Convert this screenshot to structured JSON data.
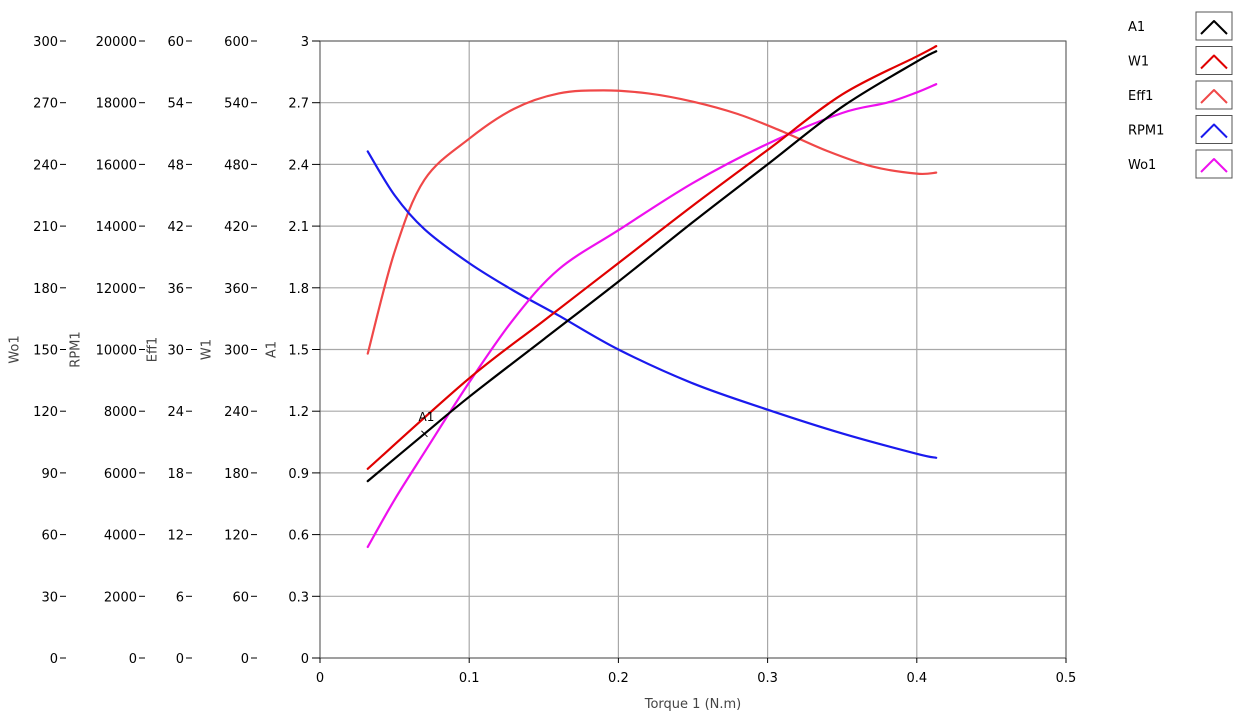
{
  "chart_data": {
    "type": "line",
    "xlabel": "Torque 1 (N.m)",
    "xlim": [
      0,
      0.5
    ],
    "x_ticks": [
      "0",
      "0.1",
      "0.2",
      "0.3",
      "0.4",
      "0.5"
    ],
    "grid": true,
    "legend_position": "top-right",
    "y_axes": [
      {
        "id": "Wo1",
        "label": "Wo1",
        "ylim": [
          0,
          300
        ],
        "ticks": [
          "300",
          "270",
          "240",
          "210",
          "180",
          "150",
          "120",
          "90",
          "60",
          "30",
          "0"
        ]
      },
      {
        "id": "RPM1",
        "label": "RPM1",
        "ylim": [
          0,
          20000
        ],
        "ticks": [
          "20000",
          "18000",
          "16000",
          "14000",
          "12000",
          "10000",
          "8000",
          "6000",
          "4000",
          "2000",
          "0"
        ]
      },
      {
        "id": "Eff1",
        "label": "Eff1",
        "ylim": [
          0,
          60
        ],
        "ticks": [
          "60",
          "54",
          "48",
          "42",
          "36",
          "30",
          "24",
          "18",
          "12",
          "6",
          "0"
        ]
      },
      {
        "id": "W1",
        "label": "W1",
        "ylim": [
          0,
          600
        ],
        "ticks": [
          "600",
          "540",
          "480",
          "420",
          "360",
          "300",
          "240",
          "180",
          "120",
          "60",
          "0"
        ]
      },
      {
        "id": "A1",
        "label": "A1",
        "ylim": [
          0,
          3
        ],
        "ticks": [
          "3",
          "2.7",
          "2.4",
          "2.1",
          "1.8",
          "1.5",
          "1.2",
          "0.9",
          "0.6",
          "0.3",
          "0"
        ]
      }
    ],
    "series": [
      {
        "name": "A1",
        "axis": "A1",
        "color": "#000000",
        "x": [
          0.032,
          0.07,
          0.1,
          0.15,
          0.2,
          0.25,
          0.3,
          0.35,
          0.4,
          0.413
        ],
        "y": [
          0.86,
          1.09,
          1.27,
          1.55,
          1.83,
          2.12,
          2.4,
          2.68,
          2.9,
          2.95
        ]
      },
      {
        "name": "W1",
        "axis": "W1",
        "color": "#e00000",
        "x": [
          0.032,
          0.1,
          0.15,
          0.2,
          0.25,
          0.3,
          0.35,
          0.4,
          0.413
        ],
        "y": [
          184,
          272,
          328,
          384,
          440,
          494,
          548,
          585,
          595
        ]
      },
      {
        "name": "Eff1",
        "axis": "Eff1",
        "color": "#f04848",
        "x": [
          0.032,
          0.05,
          0.07,
          0.1,
          0.13,
          0.16,
          0.19,
          0.22,
          0.25,
          0.28,
          0.31,
          0.34,
          0.37,
          0.4,
          0.413
        ],
        "y": [
          29.6,
          39.5,
          46.5,
          50.5,
          53.4,
          54.9,
          55.2,
          54.9,
          54.1,
          52.9,
          51.2,
          49.3,
          47.8,
          47.1,
          47.2
        ]
      },
      {
        "name": "RPM1",
        "axis": "RPM1",
        "color": "#1a1aee",
        "x": [
          0.032,
          0.05,
          0.07,
          0.1,
          0.13,
          0.16,
          0.2,
          0.25,
          0.3,
          0.35,
          0.4,
          0.413
        ],
        "y": [
          16420,
          15000,
          13900,
          12800,
          11900,
          11100,
          10000,
          8900,
          8050,
          7280,
          6620,
          6490
        ]
      },
      {
        "name": "Wo1",
        "axis": "Wo1",
        "color": "#ee10ee",
        "x": [
          0.032,
          0.05,
          0.07,
          0.1,
          0.13,
          0.16,
          0.2,
          0.25,
          0.3,
          0.35,
          0.38,
          0.4,
          0.413
        ],
        "y": [
          54,
          77,
          100,
          134,
          165,
          189,
          208,
          231,
          250,
          265,
          270,
          275,
          279
        ]
      }
    ],
    "annotations": [
      {
        "text": "A1",
        "x": 0.07,
        "y": 1.09,
        "axis": "A1"
      }
    ]
  }
}
